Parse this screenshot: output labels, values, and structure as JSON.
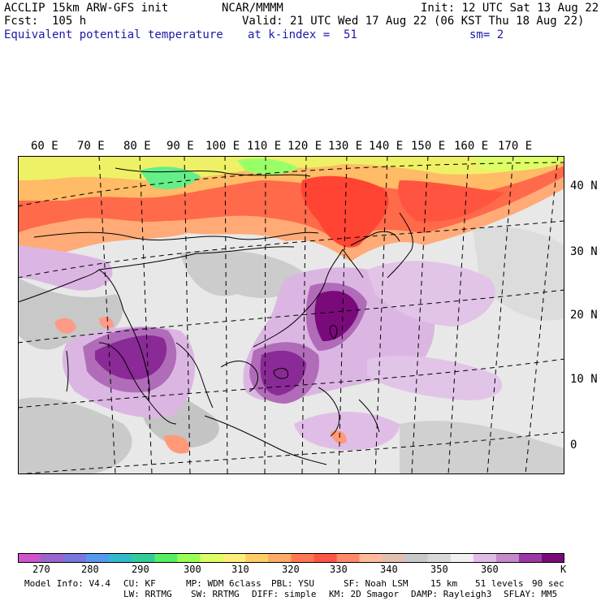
{
  "header": {
    "model": "ACCLIP 15km ARW-GFS init",
    "center": "NCAR/MMMM",
    "init": "Init: 12 UTC Sat 13 Aug 22",
    "forecast": "Fcst:  105 h",
    "valid": "Valid: 21 UTC Wed 17 Aug 22 (06 KST Thu 18 Aug 22)",
    "field": "Equivalent potential temperature",
    "level": "at k-index =  51",
    "smoothing": "sm= 2"
  },
  "map": {
    "longitude_labels": [
      "60 E",
      "70 E",
      "80 E",
      "90 E",
      "100 E",
      "110 E",
      "120 E",
      "130 E",
      "140 E",
      "150 E",
      "160 E",
      "170 E"
    ],
    "latitude_labels": [
      "40 N",
      "30 N",
      "20 N",
      "10 N",
      "0"
    ]
  },
  "colorbar": {
    "unit": "K",
    "labels": [
      "270",
      "280",
      "290",
      "300",
      "310",
      "320",
      "330",
      "340",
      "350",
      "360"
    ],
    "colors": [
      "#cc55cc",
      "#9966cc",
      "#7777dd",
      "#5599ee",
      "#33bbcc",
      "#33cc99",
      "#55ee66",
      "#99ff55",
      "#ddff66",
      "#ffee77",
      "#ffcc66",
      "#ffaa66",
      "#ff7755",
      "#ff5544",
      "#ff8866",
      "#ffbb99",
      "#e0c0b0",
      "#c8c8c8",
      "#d8d8d8",
      "#f0f0f0",
      "#e0bbe6",
      "#c48acc",
      "#9a3aa6",
      "#7a0a7a"
    ]
  },
  "footer": {
    "line1": {
      "model_info": "Model Info: V4.4",
      "cu": "CU: KF",
      "mp": "MP: WDM 6class",
      "pbl": "PBL: YSU",
      "sf": "SF: Noah LSM",
      "grid": "15 km",
      "levels": "51 levels",
      "dt": "90 sec"
    },
    "line2": {
      "lw": "LW: RRTMG",
      "sw": "SW: RRTMG",
      "diff": "DIFF: simple",
      "km": "KM: 2D Smagor",
      "damp": "DAMP: Rayleigh3",
      "sflay": "SFLAY: MM5"
    }
  }
}
